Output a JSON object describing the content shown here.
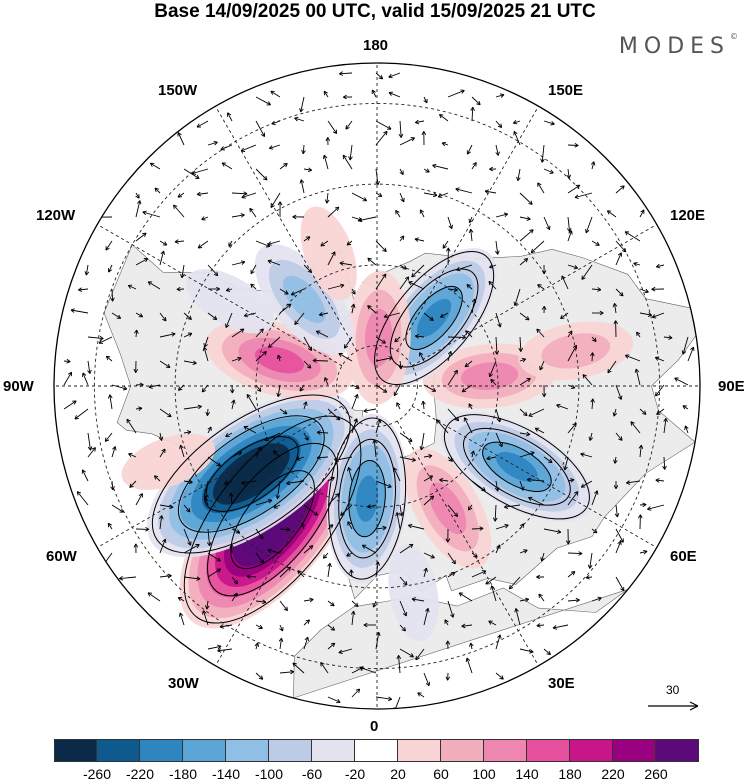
{
  "title": "Base 14/09/2025 00 UTC, valid 15/09/2025 21 UTC",
  "brand": "MODES",
  "brand_mark": "©",
  "longitude_labels": {
    "top": "180",
    "bottom": "0",
    "left": "90W",
    "right": "90E",
    "upper_left_1": "150W",
    "upper_left_2": "120W",
    "upper_right_1": "150E",
    "upper_right_2": "120E",
    "lower_left_1": "60W",
    "lower_left_2": "30W",
    "lower_right_1": "60E",
    "lower_right_2": "30E"
  },
  "reference_vector": "30",
  "colorbar": {
    "colors": [
      "#0b2a4a",
      "#0e5a8e",
      "#2e86c1",
      "#5aa5d6",
      "#8fbfe4",
      "#bccbe6",
      "#e3e3f0",
      "#ffffff",
      "#f8d4d4",
      "#f2aebd",
      "#ee86b0",
      "#e64f9d",
      "#c8158a",
      "#98007f",
      "#5c0a7a"
    ],
    "ticks": [
      "-260",
      "-220",
      "-180",
      "-140",
      "-100",
      "-60",
      "-20",
      "20",
      "60",
      "100",
      "140",
      "180",
      "220",
      "260"
    ]
  },
  "anomalies": [
    {
      "lat": 48,
      "lon": -38,
      "sign": 1,
      "level": 10
    },
    {
      "lat": 52,
      "lon": -55,
      "sign": -1,
      "level": 9
    },
    {
      "lat": 62,
      "lon": -5,
      "sign": -1,
      "level": 5
    },
    {
      "lat": 55,
      "lon": 30,
      "sign": 1,
      "level": 3
    },
    {
      "lat": 50,
      "lon": 60,
      "sign": -1,
      "level": 5
    },
    {
      "lat": 62,
      "lon": 95,
      "sign": 1,
      "level": 3
    },
    {
      "lat": 68,
      "lon": 140,
      "sign": -1,
      "level": 5
    },
    {
      "lat": 78,
      "lon": 178,
      "sign": 1,
      "level": 3
    },
    {
      "lat": 65,
      "lon": -105,
      "sign": 1,
      "level": 4
    },
    {
      "lat": 62,
      "lon": -140,
      "sign": -1,
      "level": 3
    },
    {
      "lat": 48,
      "lon": -120,
      "sign": -1,
      "level": 1
    },
    {
      "lat": 55,
      "lon": -160,
      "sign": 1,
      "level": 1
    },
    {
      "lat": 40,
      "lon": 100,
      "sign": 1,
      "level": 2
    },
    {
      "lat": 38,
      "lon": 10,
      "sign": -1,
      "level": 1
    },
    {
      "lat": 35,
      "lon": -70,
      "sign": 1,
      "level": 1
    }
  ]
}
